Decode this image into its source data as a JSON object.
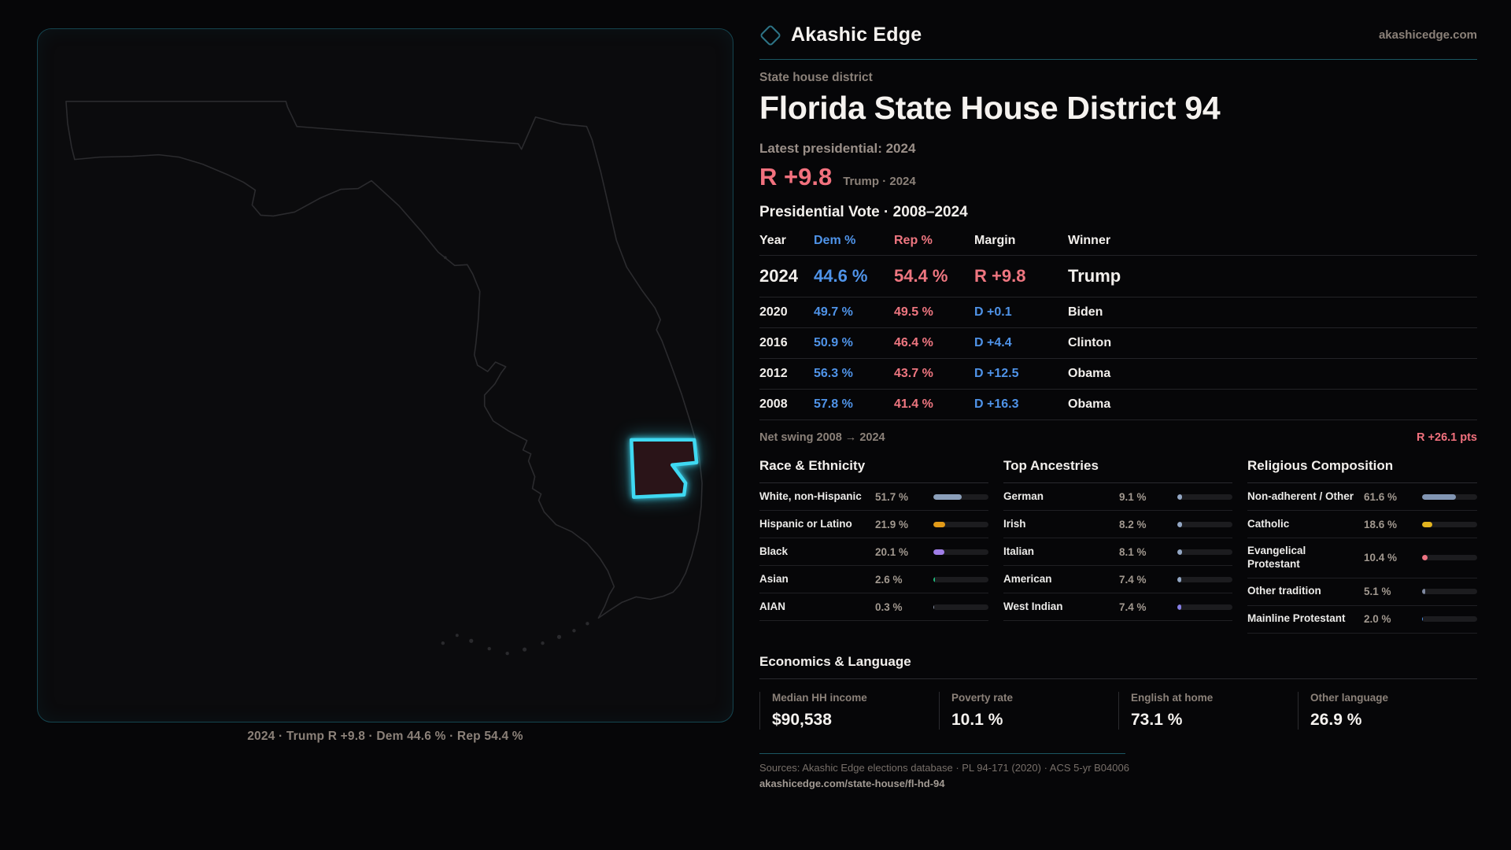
{
  "brand": {
    "name": "Akashic Edge",
    "domain": "akashicedge.com"
  },
  "page": {
    "kicker": "State house district",
    "title": "Florida State House District 94",
    "latest_label": "Latest presidential: 2024",
    "headline_margin": "R +9.8",
    "headline_sub": "Trump · 2024"
  },
  "map": {
    "caption": "2024 · Trump R +9.8 · Dem 44.6 % · Rep 54.4 %",
    "district_color": "#3fd9f2",
    "district_fill": "#2a1418",
    "outline_color": "#2b2b2e"
  },
  "chart_data": {
    "type": "table",
    "title": "Presidential Vote · 2008–2024",
    "columns": [
      "Year",
      "Dem %",
      "Rep %",
      "Margin",
      "Winner"
    ],
    "rows": [
      {
        "year": "2024",
        "dem": "44.6 %",
        "rep": "54.4 %",
        "margin": "R +9.8",
        "party": "R",
        "winner": "Trump",
        "emphasis": true
      },
      {
        "year": "2020",
        "dem": "49.7 %",
        "rep": "49.5 %",
        "margin": "D +0.1",
        "party": "D",
        "winner": "Biden",
        "emphasis": false
      },
      {
        "year": "2016",
        "dem": "50.9 %",
        "rep": "46.4 %",
        "margin": "D +4.4",
        "party": "D",
        "winner": "Clinton",
        "emphasis": false
      },
      {
        "year": "2012",
        "dem": "56.3 %",
        "rep": "43.7 %",
        "margin": "D +12.5",
        "party": "D",
        "winner": "Obama",
        "emphasis": false
      },
      {
        "year": "2008",
        "dem": "57.8 %",
        "rep": "41.4 %",
        "margin": "D +16.3",
        "party": "D",
        "winner": "Obama",
        "emphasis": false
      }
    ]
  },
  "net_swing": {
    "label": "Net swing 2008 → 2024",
    "value": "R +26.1 pts"
  },
  "race": {
    "title": "Race & Ethnicity",
    "rows": [
      {
        "label": "White, non-Hispanic",
        "value": "51.7 %",
        "pct": 51.7,
        "color": "#8b9fba"
      },
      {
        "label": "Hispanic or Latino",
        "value": "21.9 %",
        "pct": 21.9,
        "color": "#e29a18"
      },
      {
        "label": "Black",
        "value": "20.1 %",
        "pct": 20.1,
        "color": "#a07ee8"
      },
      {
        "label": "Asian",
        "value": "2.6 %",
        "pct": 2.6,
        "color": "#1fba7c"
      },
      {
        "label": "AIAN",
        "value": "0.3 %",
        "pct": 0.3,
        "color": "#8a93a8"
      }
    ]
  },
  "ancestries": {
    "title": "Top Ancestries",
    "rows": [
      {
        "label": "German",
        "value": "9.1 %",
        "pct": 9.1,
        "color": "#93a7c4"
      },
      {
        "label": "Irish",
        "value": "8.2 %",
        "pct": 8.2,
        "color": "#93a7c4"
      },
      {
        "label": "Italian",
        "value": "8.1 %",
        "pct": 8.1,
        "color": "#93a7c4"
      },
      {
        "label": "American",
        "value": "7.4 %",
        "pct": 7.4,
        "color": "#93a7c4"
      },
      {
        "label": "West Indian",
        "value": "7.4 %",
        "pct": 7.4,
        "color": "#867fe6"
      }
    ]
  },
  "religion": {
    "title": "Religious Composition",
    "rows": [
      {
        "label": "Non-adherent / Other",
        "value": "61.6 %",
        "pct": 61.6,
        "color": "#8195b3"
      },
      {
        "label": "Catholic",
        "value": "18.6 %",
        "pct": 18.6,
        "color": "#e3b41f"
      },
      {
        "label": "Evangelical Protestant",
        "value": "10.4 %",
        "pct": 10.4,
        "color": "#ed7382"
      },
      {
        "label": "Other tradition",
        "value": "5.1 %",
        "pct": 5.1,
        "color": "#7e88a0"
      },
      {
        "label": "Mainline Protestant",
        "value": "2.0 %",
        "pct": 2.0,
        "color": "#4f93e8"
      }
    ]
  },
  "economics": {
    "title": "Economics & Language",
    "stats": [
      {
        "label": "Median HH income",
        "value": "$90,538"
      },
      {
        "label": "Poverty rate",
        "value": "10.1 %"
      },
      {
        "label": "English at home",
        "value": "73.1 %"
      },
      {
        "label": "Other language",
        "value": "26.9 %"
      }
    ]
  },
  "footer": {
    "sources": "Sources: Akashic Edge elections database · PL 94-171 (2020) · ACS 5-yr B04006",
    "url": "akashicedge.com/state-house/fl-hd-94"
  }
}
